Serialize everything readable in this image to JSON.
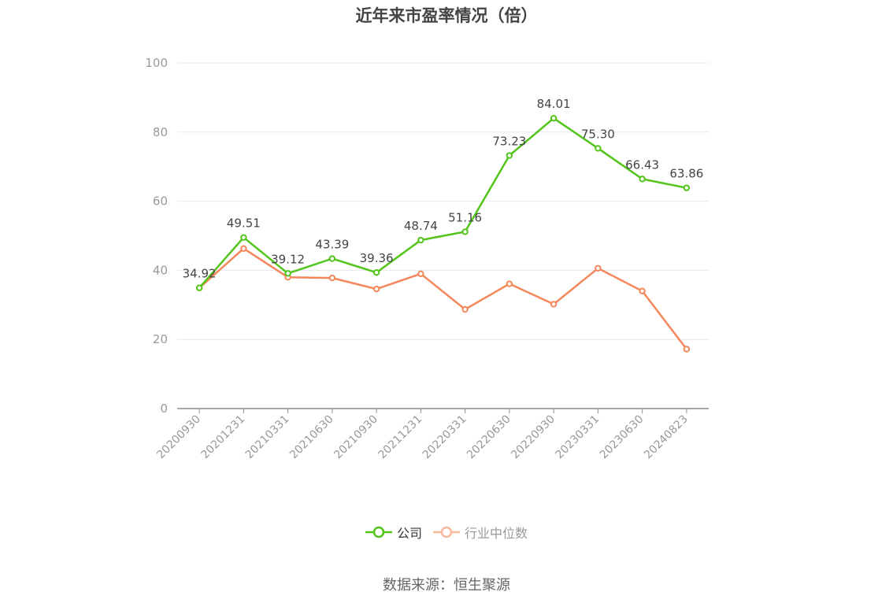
{
  "chart_data": {
    "type": "line",
    "title": "近年来市盈率情况（倍）",
    "categories": [
      "20200930",
      "20201231",
      "20210331",
      "20210630",
      "20210930",
      "20211231",
      "20220331",
      "20220630",
      "20220930",
      "20230331",
      "20230630",
      "20240823"
    ],
    "series": [
      {
        "name": "公司",
        "color": "#52c41a",
        "values": [
          34.92,
          49.51,
          39.12,
          43.39,
          39.36,
          48.74,
          51.16,
          73.23,
          84.01,
          75.3,
          66.43,
          63.86
        ],
        "labels": [
          "34.92",
          "49.51",
          "39.12",
          "43.39",
          "39.36",
          "48.74",
          "51.16",
          "73.23",
          "84.01",
          "75.30",
          "66.43",
          "63.86"
        ]
      },
      {
        "name": "行业中位数",
        "color": "#f5875a",
        "values": [
          34.9,
          46.3,
          38.0,
          37.8,
          34.6,
          39.0,
          28.7,
          36.1,
          30.2,
          40.6,
          34.0,
          17.2
        ]
      }
    ],
    "yticks": [
      "0",
      "20",
      "40",
      "60",
      "80",
      "100"
    ],
    "ylim": [
      0,
      100
    ],
    "grid": true,
    "legend_position": "bottom"
  },
  "source": "数据来源：恒生聚源"
}
